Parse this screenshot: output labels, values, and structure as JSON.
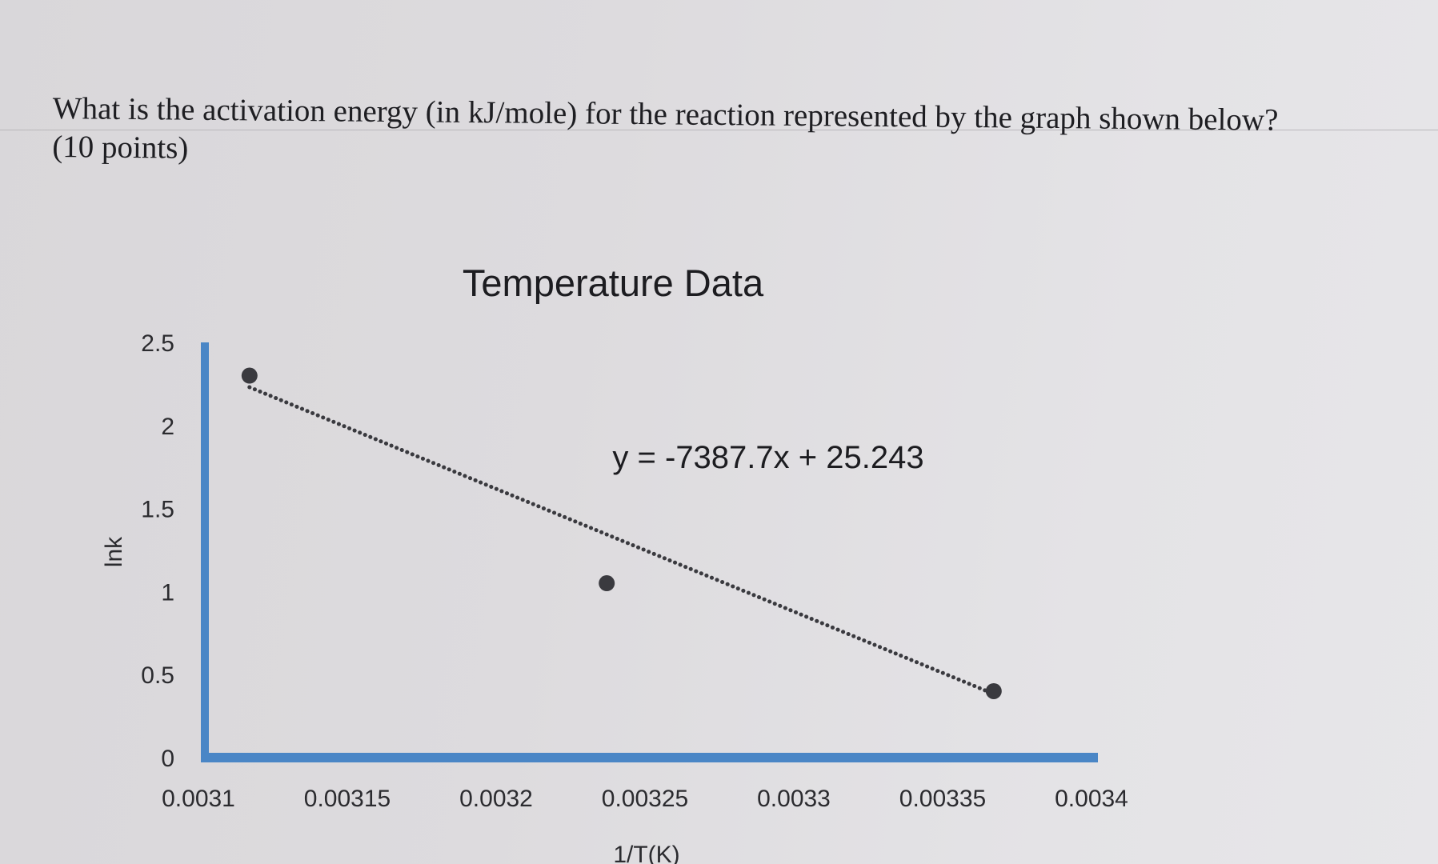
{
  "question": {
    "line1": "What is the activation energy (in kJ/mole) for the reaction represented by the graph shown below?",
    "line2": "(10 points)"
  },
  "chart_data": {
    "type": "scatter",
    "title": "Temperature Data",
    "xlabel": "1/T(K)",
    "ylabel": "lnk",
    "xlim": [
      0.0031,
      0.0034
    ],
    "ylim": [
      0,
      2.5
    ],
    "x_ticks": [
      "0.0031",
      "0.00315",
      "0.0032",
      "0.00325",
      "0.0033",
      "0.00335",
      "0.0034"
    ],
    "y_ticks": [
      "0",
      "0.5",
      "1",
      "1.5",
      "2",
      "2.5"
    ],
    "points": [
      {
        "x": 0.003115,
        "y": 2.3
      },
      {
        "x": 0.003235,
        "y": 1.05
      },
      {
        "x": 0.003365,
        "y": 0.4
      }
    ],
    "trendline": {
      "style": "dotted",
      "x_range": [
        0.003115,
        0.003365
      ],
      "equation": "y = -7387.7x + 25.243"
    },
    "grid": false,
    "colors": {
      "axis": "#4a86c6",
      "points": "#3a3a3f",
      "trendline": "#3a3a3f"
    }
  }
}
